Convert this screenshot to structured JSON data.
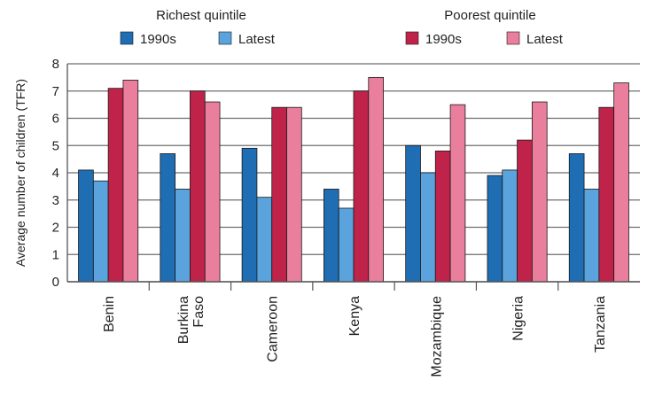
{
  "chart_data": {
    "type": "bar",
    "title": "",
    "xlabel": "",
    "ylabel": "Average number of children (TFR)",
    "ylim": [
      0,
      8
    ],
    "yticks": [
      0,
      1,
      2,
      3,
      4,
      5,
      6,
      7,
      8
    ],
    "grid": true,
    "legend_placement": "top",
    "legend_groups": [
      {
        "title": "Richest quintile",
        "entries": [
          0,
          1
        ]
      },
      {
        "title": "Poorest quintile",
        "entries": [
          2,
          3
        ]
      }
    ],
    "categories": [
      [
        "Benin"
      ],
      [
        "Burkina",
        "Faso"
      ],
      [
        "Cameroon"
      ],
      [
        "Kenya"
      ],
      [
        "Mozambique"
      ],
      [
        "Nigeria"
      ],
      [
        "Tanzania"
      ]
    ],
    "series": [
      {
        "name": "1990s",
        "group": "Richest quintile",
        "color": "#1f6db3",
        "values": [
          4.1,
          4.7,
          4.9,
          3.4,
          5.0,
          3.9,
          4.7
        ]
      },
      {
        "name": "Latest",
        "group": "Richest quintile",
        "color": "#5aa3dc",
        "values": [
          3.7,
          3.4,
          3.1,
          2.7,
          4.0,
          4.1,
          3.4
        ]
      },
      {
        "name": "1990s",
        "group": "Poorest quintile",
        "color": "#c0234a",
        "values": [
          7.1,
          7.0,
          6.4,
          7.0,
          4.8,
          5.2,
          6.4
        ]
      },
      {
        "name": "Latest",
        "group": "Poorest quintile",
        "color": "#ea7e9d",
        "values": [
          7.4,
          6.6,
          6.4,
          7.5,
          6.5,
          6.6,
          7.3
        ]
      }
    ]
  }
}
